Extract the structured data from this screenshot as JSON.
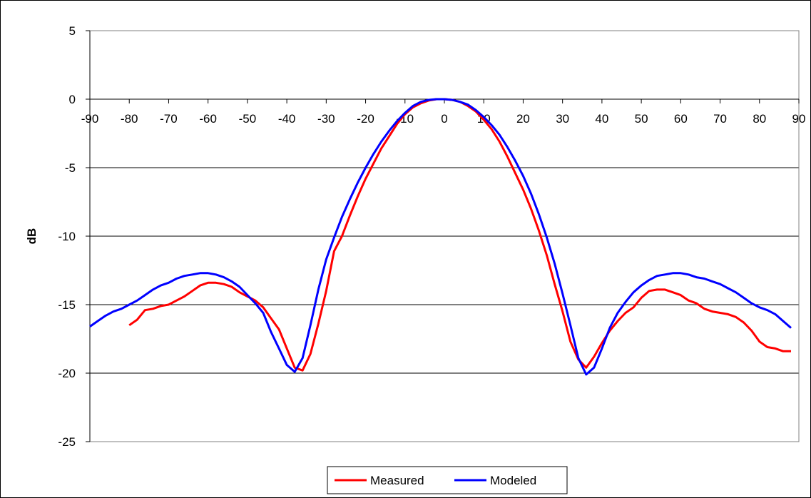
{
  "chart_data": {
    "type": "line",
    "title": "",
    "xlabel": "",
    "ylabel": "dB",
    "xlim": [
      -90,
      90
    ],
    "ylim": [
      -25,
      5
    ],
    "x_ticks": [
      -90,
      -80,
      -70,
      -60,
      -50,
      -40,
      -30,
      -20,
      -10,
      0,
      10,
      20,
      30,
      40,
      50,
      60,
      70,
      80,
      90
    ],
    "y_ticks": [
      5,
      0,
      -5,
      -10,
      -15,
      -20,
      -25
    ],
    "grid": "horizontal",
    "legend_position": "bottom",
    "series": [
      {
        "name": "Measured",
        "color": "#ff0000",
        "points": [
          [
            -80,
            -16.5
          ],
          [
            -78,
            -16.1
          ],
          [
            -76,
            -15.4
          ],
          [
            -74,
            -15.3
          ],
          [
            -72,
            -15.1
          ],
          [
            -70,
            -15.0
          ],
          [
            -68,
            -14.7
          ],
          [
            -66,
            -14.4
          ],
          [
            -64,
            -14.0
          ],
          [
            -62,
            -13.6
          ],
          [
            -60,
            -13.4
          ],
          [
            -58,
            -13.4
          ],
          [
            -56,
            -13.5
          ],
          [
            -54,
            -13.7
          ],
          [
            -52,
            -14.1
          ],
          [
            -50,
            -14.4
          ],
          [
            -48,
            -14.7
          ],
          [
            -46,
            -15.2
          ],
          [
            -44,
            -16.0
          ],
          [
            -42,
            -16.8
          ],
          [
            -40,
            -18.2
          ],
          [
            -38,
            -19.6
          ],
          [
            -36,
            -19.8
          ],
          [
            -34,
            -18.6
          ],
          [
            -32,
            -16.4
          ],
          [
            -30,
            -14.0
          ],
          [
            -28,
            -11.1
          ],
          [
            -26,
            -10.0
          ],
          [
            -24,
            -8.5
          ],
          [
            -22,
            -7.1
          ],
          [
            -20,
            -5.8
          ],
          [
            -18,
            -4.7
          ],
          [
            -16,
            -3.6
          ],
          [
            -14,
            -2.7
          ],
          [
            -12,
            -1.8
          ],
          [
            -10,
            -1.1
          ],
          [
            -8,
            -0.6
          ],
          [
            -6,
            -0.3
          ],
          [
            -4,
            -0.1
          ],
          [
            -2,
            0
          ],
          [
            0,
            0
          ],
          [
            2,
            -0.05
          ],
          [
            4,
            -0.2
          ],
          [
            6,
            -0.5
          ],
          [
            8,
            -0.9
          ],
          [
            10,
            -1.5
          ],
          [
            12,
            -2.2
          ],
          [
            14,
            -3.1
          ],
          [
            16,
            -4.2
          ],
          [
            18,
            -5.4
          ],
          [
            20,
            -6.6
          ],
          [
            22,
            -8.0
          ],
          [
            24,
            -9.6
          ],
          [
            26,
            -11.4
          ],
          [
            28,
            -13.5
          ],
          [
            30,
            -15.5
          ],
          [
            32,
            -17.7
          ],
          [
            34,
            -19.0
          ],
          [
            36,
            -19.6
          ],
          [
            38,
            -18.8
          ],
          [
            40,
            -17.8
          ],
          [
            42,
            -16.9
          ],
          [
            44,
            -16.2
          ],
          [
            46,
            -15.6
          ],
          [
            48,
            -15.2
          ],
          [
            50,
            -14.5
          ],
          [
            52,
            -14.0
          ],
          [
            54,
            -13.9
          ],
          [
            56,
            -13.9
          ],
          [
            58,
            -14.1
          ],
          [
            60,
            -14.3
          ],
          [
            62,
            -14.7
          ],
          [
            64,
            -14.9
          ],
          [
            66,
            -15.3
          ],
          [
            68,
            -15.5
          ],
          [
            70,
            -15.6
          ],
          [
            72,
            -15.7
          ],
          [
            74,
            -15.9
          ],
          [
            76,
            -16.3
          ],
          [
            78,
            -16.9
          ],
          [
            80,
            -17.7
          ],
          [
            82,
            -18.1
          ],
          [
            84,
            -18.2
          ],
          [
            86,
            -18.4
          ],
          [
            88,
            -18.4
          ]
        ]
      },
      {
        "name": "Modeled",
        "color": "#0000ff",
        "points": [
          [
            -90,
            -16.6
          ],
          [
            -88,
            -16.2
          ],
          [
            -86,
            -15.8
          ],
          [
            -84,
            -15.5
          ],
          [
            -82,
            -15.3
          ],
          [
            -80,
            -15.0
          ],
          [
            -78,
            -14.7
          ],
          [
            -76,
            -14.3
          ],
          [
            -74,
            -13.9
          ],
          [
            -72,
            -13.6
          ],
          [
            -70,
            -13.4
          ],
          [
            -68,
            -13.1
          ],
          [
            -66,
            -12.9
          ],
          [
            -64,
            -12.8
          ],
          [
            -62,
            -12.7
          ],
          [
            -60,
            -12.7
          ],
          [
            -58,
            -12.8
          ],
          [
            -56,
            -13.0
          ],
          [
            -54,
            -13.3
          ],
          [
            -52,
            -13.7
          ],
          [
            -50,
            -14.3
          ],
          [
            -48,
            -14.9
          ],
          [
            -46,
            -15.6
          ],
          [
            -44,
            -17.0
          ],
          [
            -42,
            -18.2
          ],
          [
            -40,
            -19.4
          ],
          [
            -38,
            -19.9
          ],
          [
            -36,
            -18.9
          ],
          [
            -34,
            -16.5
          ],
          [
            -32,
            -13.9
          ],
          [
            -30,
            -11.7
          ],
          [
            -28,
            -10.1
          ],
          [
            -26,
            -8.6
          ],
          [
            -24,
            -7.3
          ],
          [
            -22,
            -6.1
          ],
          [
            -20,
            -5.0
          ],
          [
            -18,
            -4.0
          ],
          [
            -16,
            -3.1
          ],
          [
            -14,
            -2.3
          ],
          [
            -12,
            -1.6
          ],
          [
            -10,
            -1.0
          ],
          [
            -8,
            -0.5
          ],
          [
            -6,
            -0.2
          ],
          [
            -4,
            -0.05
          ],
          [
            -2,
            0
          ],
          [
            0,
            0
          ],
          [
            2,
            -0.05
          ],
          [
            4,
            -0.2
          ],
          [
            6,
            -0.4
          ],
          [
            8,
            -0.8
          ],
          [
            10,
            -1.3
          ],
          [
            12,
            -1.9
          ],
          [
            14,
            -2.6
          ],
          [
            16,
            -3.5
          ],
          [
            18,
            -4.5
          ],
          [
            20,
            -5.6
          ],
          [
            22,
            -6.9
          ],
          [
            24,
            -8.4
          ],
          [
            26,
            -10.1
          ],
          [
            28,
            -12.0
          ],
          [
            30,
            -14.2
          ],
          [
            32,
            -16.5
          ],
          [
            34,
            -18.9
          ],
          [
            36,
            -20.1
          ],
          [
            38,
            -19.6
          ],
          [
            40,
            -18.2
          ],
          [
            42,
            -16.7
          ],
          [
            44,
            -15.6
          ],
          [
            46,
            -14.8
          ],
          [
            48,
            -14.1
          ],
          [
            50,
            -13.6
          ],
          [
            52,
            -13.2
          ],
          [
            54,
            -12.9
          ],
          [
            56,
            -12.8
          ],
          [
            58,
            -12.7
          ],
          [
            60,
            -12.7
          ],
          [
            62,
            -12.8
          ],
          [
            64,
            -13.0
          ],
          [
            66,
            -13.1
          ],
          [
            68,
            -13.3
          ],
          [
            70,
            -13.5
          ],
          [
            72,
            -13.8
          ],
          [
            74,
            -14.1
          ],
          [
            76,
            -14.5
          ],
          [
            78,
            -14.9
          ],
          [
            80,
            -15.2
          ],
          [
            82,
            -15.4
          ],
          [
            84,
            -15.7
          ],
          [
            86,
            -16.2
          ],
          [
            88,
            -16.7
          ]
        ]
      }
    ]
  }
}
